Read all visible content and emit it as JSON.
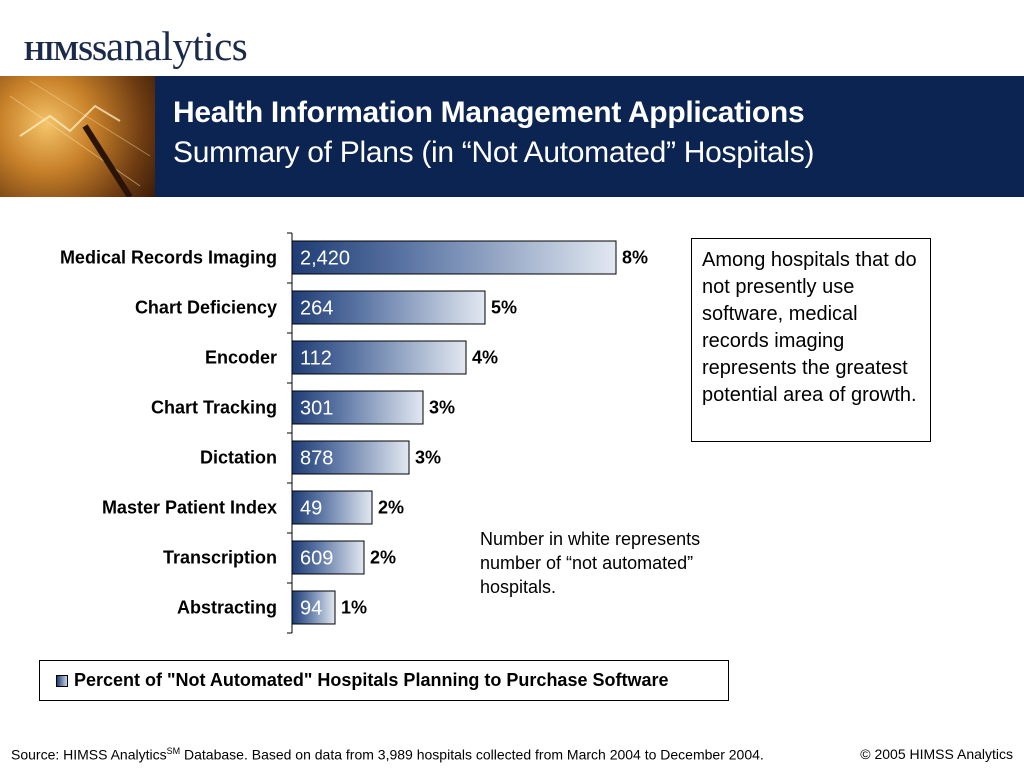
{
  "logo": {
    "part1": "HIMSS",
    "part2": "analytics"
  },
  "header": {
    "title": "Health Information Management Applications",
    "subtitle": "Summary of Plans (in “Not Automated” Hospitals)"
  },
  "chart_data": {
    "type": "bar",
    "orientation": "horizontal",
    "categories": [
      "Medical Records Imaging",
      "Chart Deficiency",
      "Encoder",
      "Chart Tracking",
      "Dictation",
      "Master Patient Index",
      "Transcription",
      "Abstracting"
    ],
    "series": [
      {
        "name": "Percent of \"Not Automated\" Hospitals Planning to Purchase Software",
        "values": [
          8,
          5,
          4,
          3,
          3,
          2,
          2,
          1
        ]
      }
    ],
    "value_labels": [
      "8%",
      "5%",
      "4%",
      "3%",
      "3%",
      "2%",
      "2%",
      "1%"
    ],
    "inner_labels": [
      "2,420",
      "264",
      "112",
      "301",
      "878",
      "49",
      "609",
      "94"
    ],
    "xlim": [
      0,
      10
    ],
    "grid": false,
    "legend": "bottom",
    "colors": {
      "bar_dark": "#1f3d75",
      "bar_light": "#dde4ee"
    }
  },
  "callout": {
    "text": "Among hospitals that do not presently use software, medical records imaging represents the greatest potential area of growth."
  },
  "note": {
    "text": "Number in white represents number of “not automated” hospitals."
  },
  "legend": {
    "label": "Percent of \"Not Automated\" Hospitals Planning to Purchase Software"
  },
  "footer": {
    "source_prefix": "Source:  HIMSS Analytics",
    "source_sup": "SM",
    "source_suffix": " Database. Based on data from 3,989 hospitals collected from March 2004 to December 2004.",
    "copyright": "© 2005 HIMSS Analytics"
  },
  "colors": {
    "banner": "#0c2452"
  }
}
